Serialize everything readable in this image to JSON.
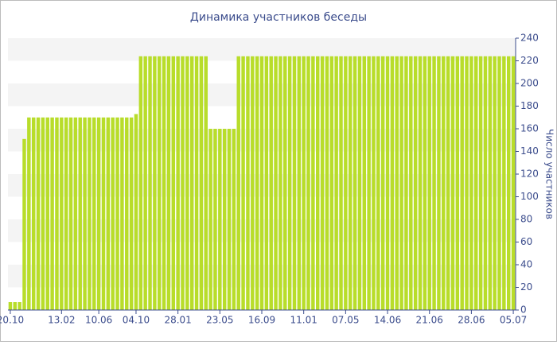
{
  "chart_data": {
    "type": "bar",
    "title": "Динамика участников беседы",
    "y_label": "Число участников",
    "categories": [
      "20.10",
      null,
      null,
      null,
      null,
      null,
      null,
      null,
      null,
      null,
      null,
      "13.02",
      null,
      null,
      null,
      null,
      null,
      null,
      null,
      "10.06",
      null,
      null,
      null,
      null,
      null,
      null,
      null,
      "04.10",
      null,
      null,
      null,
      null,
      null,
      null,
      null,
      null,
      "28.01",
      null,
      null,
      null,
      null,
      null,
      null,
      null,
      null,
      "23.05",
      null,
      null,
      null,
      null,
      null,
      null,
      null,
      null,
      "16.09",
      null,
      null,
      null,
      null,
      null,
      null,
      null,
      null,
      "11.01",
      null,
      null,
      null,
      null,
      null,
      null,
      null,
      null,
      "07.05",
      null,
      null,
      null,
      null,
      null,
      null,
      null,
      null,
      "14.06",
      null,
      null,
      null,
      null,
      null,
      null,
      null,
      null,
      "21.06",
      null,
      null,
      null,
      null,
      null,
      null,
      null,
      null,
      "28.06",
      null,
      null,
      null,
      null,
      null,
      null,
      null,
      null,
      "05.07"
    ],
    "values": [
      7,
      7,
      7,
      151,
      170,
      170,
      170,
      170,
      170,
      170,
      170,
      170,
      170,
      170,
      170,
      170,
      170,
      170,
      170,
      170,
      170,
      170,
      170,
      170,
      170,
      170,
      170,
      173,
      224,
      224,
      224,
      224,
      224,
      224,
      224,
      224,
      224,
      224,
      224,
      224,
      224,
      224,
      224,
      160,
      160,
      160,
      160,
      160,
      160,
      224,
      224,
      224,
      224,
      224,
      224,
      224,
      224,
      224,
      224,
      224,
      224,
      224,
      224,
      224,
      224,
      224,
      224,
      224,
      224,
      224,
      224,
      224,
      224,
      224,
      224,
      224,
      224,
      224,
      224,
      224,
      224,
      224,
      224,
      224,
      224,
      224,
      224,
      224,
      224,
      224,
      224,
      224,
      224,
      224,
      224,
      224,
      224,
      224,
      224,
      224,
      224,
      224,
      224,
      224,
      224,
      224,
      224,
      224,
      224
    ],
    "color": "#b8dd2a",
    "ylim": [
      0,
      240
    ],
    "yticks": [
      0,
      20,
      40,
      60,
      80,
      100,
      120,
      140,
      160,
      180,
      200,
      220,
      240
    ],
    "grid": true
  }
}
